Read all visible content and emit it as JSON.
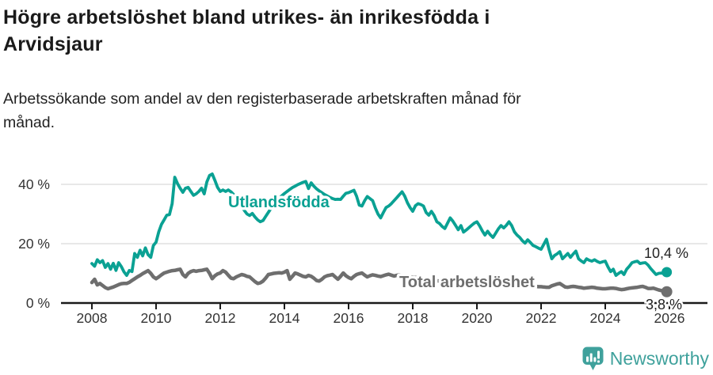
{
  "header": {
    "title_lines": [
      "Högre arbetslöshet bland utrikes- än inrikesfödda i",
      "Arvidsjaur"
    ],
    "subtitle_lines": [
      "Arbetssökande som andel av den registerbaserade arbetskraften månad för",
      "månad."
    ]
  },
  "footer": {
    "brand": "Newsworthy",
    "brand_color": "#3fa19c",
    "logo_icon": "bar-chart-speech-bubble-icon"
  },
  "chart_data": {
    "type": "line",
    "title": "Högre arbetslöshet bland utrikes- än inrikesfödda i Arvidsjaur",
    "subtitle": "Arbetssökande som andel av den registerbaserade arbetskraften månad för månad.",
    "x_unit": "month",
    "x_start": "2008-01",
    "x_end": "2025-12",
    "x_tick_labels": [
      "2008",
      "2010",
      "2012",
      "2014",
      "2016",
      "2018",
      "2020",
      "2022",
      "2024",
      "2026"
    ],
    "y_ticks": [
      {
        "value": 0,
        "label": "0 %"
      },
      {
        "value": 20,
        "label": "20 %"
      },
      {
        "value": 40,
        "label": "40 %"
      }
    ],
    "ylim": [
      0,
      46
    ],
    "grid": "horizontal",
    "grid_color": "#d9d9d9",
    "axis_color": "#1a1a1a",
    "tick_label_color": "#333333",
    "end_label_color": "#222222",
    "legend_position": "inline-labels",
    "series": [
      {
        "name": "Utlandsfödda",
        "color": "#0aa193",
        "end_label": "10,4 %",
        "end_value": 10.4,
        "values": [
          13.3,
          12.4,
          14.6,
          13.6,
          14.3,
          12.0,
          13.3,
          11.4,
          13.4,
          11.0,
          13.6,
          12.3,
          10.5,
          9.3,
          11.0,
          10.6,
          16.7,
          15.4,
          17.8,
          15.9,
          18.6,
          16.3,
          15.4,
          19.4,
          20.5,
          24.0,
          26.5,
          28.0,
          29.6,
          29.8,
          33.5,
          42.4,
          40.3,
          38.7,
          37.3,
          38.7,
          39.0,
          37.6,
          36.3,
          36.8,
          37.6,
          38.7,
          36.8,
          40.8,
          43.0,
          43.5,
          41.3,
          39.0,
          37.6,
          38.1,
          37.6,
          38.1,
          37.5,
          36.6,
          35.4,
          34.0,
          32.6,
          31.2,
          30.0,
          29.5,
          30.2,
          29.0,
          28.0,
          27.4,
          27.8,
          29.2,
          30.6,
          31.9,
          33.1,
          34.2,
          35.2,
          36.1,
          36.9,
          37.6,
          38.3,
          38.9,
          39.4,
          39.9,
          40.3,
          40.7,
          41.0,
          38.6,
          40.5,
          39.4,
          38.5,
          37.8,
          37.2,
          36.6,
          36.1,
          35.6,
          35.2,
          34.9,
          35.0,
          34.9,
          36.0,
          37.0,
          37.2,
          37.6,
          38.0,
          36.0,
          33.0,
          32.7,
          34.5,
          35.9,
          35.2,
          34.5,
          32.0,
          30.0,
          28.7,
          30.5,
          32.2,
          32.7,
          33.5,
          34.5,
          35.5,
          36.5,
          37.5,
          36.0,
          33.8,
          32.2,
          30.9,
          32.8,
          33.5,
          33.2,
          32.7,
          30.5,
          29.6,
          30.9,
          29.5,
          27.4,
          26.8,
          25.8,
          25.1,
          26.9,
          28.7,
          27.6,
          26.2,
          24.7,
          26.1,
          23.9,
          24.6,
          25.4,
          26.2,
          26.9,
          27.4,
          26.0,
          24.3,
          22.9,
          24.2,
          23.0,
          22.1,
          23.5,
          25.0,
          26.1,
          25.3,
          26.2,
          27.4,
          26.1,
          24.0,
          22.9,
          22.1,
          21.0,
          20.2,
          21.3,
          20.4,
          19.4,
          19.0,
          18.5,
          18.1,
          19.8,
          21.5,
          18.0,
          14.9,
          16.0,
          16.6,
          17.3,
          14.9,
          15.8,
          16.7,
          15.4,
          16.5,
          17.5,
          14.9,
          14.2,
          13.6,
          14.9,
          14.4,
          14.1,
          14.6,
          14.0,
          13.6,
          13.9,
          14.1,
          12.2,
          10.6,
          11.4,
          9.3,
          10.0,
          10.6,
          9.6,
          11.4,
          12.4,
          13.6,
          13.9,
          14.1,
          13.3,
          13.5,
          13.6,
          12.8,
          11.6,
          10.6,
          9.6,
          10.0,
          10.1,
          9.9,
          10.4
        ]
      },
      {
        "name": "Total arbetslöshet",
        "color": "#6e6e6e",
        "end_label": "3,8 %",
        "end_value": 3.8,
        "values": [
          6.9,
          8.0,
          6.1,
          6.6,
          5.9,
          5.2,
          4.8,
          5.1,
          5.4,
          5.8,
          6.2,
          6.5,
          6.6,
          6.6,
          7.0,
          7.6,
          8.2,
          8.8,
          9.3,
          9.9,
          10.4,
          10.9,
          10.0,
          8.8,
          8.2,
          8.8,
          9.5,
          10.1,
          10.4,
          10.7,
          10.9,
          11.0,
          11.2,
          11.4,
          9.6,
          8.8,
          10.0,
          10.6,
          10.9,
          10.7,
          10.9,
          11.0,
          11.2,
          11.4,
          10.0,
          8.2,
          9.2,
          9.8,
          10.1,
          10.9,
          10.4,
          9.4,
          8.4,
          8.2,
          8.8,
          9.2,
          9.6,
          9.4,
          9.0,
          8.8,
          8.0,
          7.2,
          6.6,
          6.8,
          7.4,
          8.4,
          9.6,
          9.8,
          10.0,
          10.1,
          10.2,
          10.1,
          10.4,
          10.9,
          8.0,
          9.0,
          10.1,
          9.8,
          9.4,
          9.0,
          8.8,
          9.3,
          9.0,
          8.4,
          7.6,
          7.4,
          8.0,
          8.8,
          9.2,
          9.4,
          9.6,
          8.8,
          8.0,
          9.0,
          10.1,
          9.2,
          8.6,
          8.2,
          9.0,
          9.6,
          9.9,
          10.1,
          9.4,
          8.8,
          9.2,
          9.5,
          9.3,
          9.1,
          8.9,
          9.2,
          9.5,
          9.7,
          9.4,
          9.1,
          9.3,
          9.5,
          9.3,
          9.1,
          8.9,
          8.8,
          8.7,
          8.6,
          8.5,
          8.3,
          8.2,
          8.0,
          7.9,
          7.8,
          7.6,
          7.5,
          7.4,
          7.3,
          7.2,
          7.2,
          7.1,
          7.0,
          7.0,
          6.9,
          6.8,
          6.8,
          6.7,
          6.7,
          6.6,
          6.6,
          6.6,
          6.6,
          6.7,
          6.9,
          7.0,
          7.0,
          6.9,
          6.8,
          6.8,
          6.7,
          6.6,
          6.5,
          6.4,
          6.4,
          6.3,
          6.2,
          6.1,
          6.0,
          5.9,
          5.8,
          5.7,
          5.7,
          5.6,
          5.5,
          5.5,
          5.4,
          5.3,
          5.3,
          5.8,
          6.1,
          6.4,
          6.6,
          6.0,
          5.4,
          5.3,
          5.5,
          5.6,
          5.5,
          5.3,
          5.2,
          5.0,
          5.1,
          5.2,
          5.3,
          5.2,
          5.0,
          4.9,
          4.8,
          4.8,
          4.9,
          5.0,
          5.0,
          4.9,
          4.7,
          4.5,
          4.6,
          4.8,
          5.0,
          5.1,
          5.2,
          5.3,
          5.5,
          5.6,
          5.3,
          4.9,
          4.9,
          5.0,
          4.7,
          4.4,
          4.2,
          4.0,
          3.8
        ]
      }
    ]
  }
}
